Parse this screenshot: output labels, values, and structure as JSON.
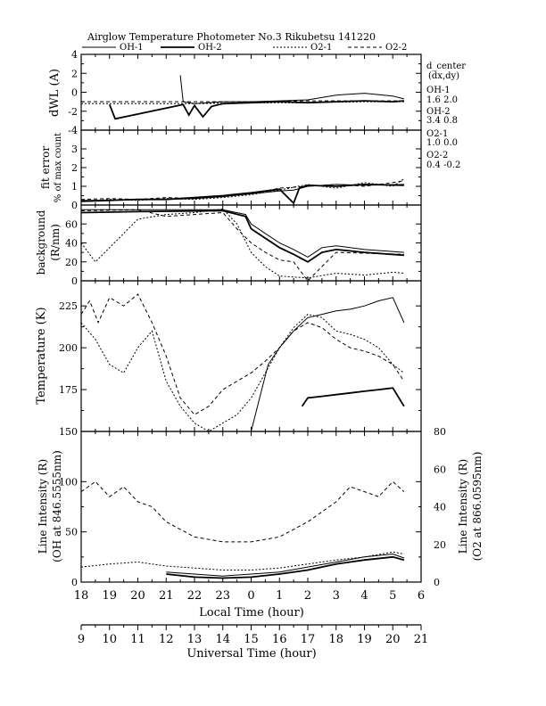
{
  "title": "Airglow Temperature Photometer No.3  Rikubetsu    141220",
  "legend": [
    {
      "label": "OH-1",
      "dash": "",
      "width": 1.0
    },
    {
      "label": "OH-2",
      "dash": "",
      "width": 1.8
    },
    {
      "label": "O2-1",
      "dash": "2,2",
      "width": 1.0
    },
    {
      "label": "O2-2",
      "dash": "4,3",
      "width": 1.0
    }
  ],
  "side_info": {
    "header1": "d_center",
    "header2": "(dx,dy)",
    "entries": [
      {
        "name": "OH-1",
        "value": "1.6   2.0"
      },
      {
        "name": "OH-2",
        "value": "3.4   0.8"
      },
      {
        "name": "O2-1",
        "value": "1.0   0.0"
      },
      {
        "name": "O2-2",
        "value": "0.4   -0.2"
      }
    ]
  },
  "panels": {
    "dwl": {
      "ylabel": "dWL (A)",
      "ticks": [
        "4",
        "2",
        "0",
        "-2",
        "-4"
      ]
    },
    "fit": {
      "ylabel1": "fit error",
      "ylabel2": "% of max count",
      "ticks": [
        "3",
        "2",
        "1",
        "0"
      ]
    },
    "background": {
      "ylabel1": "background",
      "ylabel2": "(R/nm)",
      "ticks": [
        "60",
        "40",
        "20",
        "0"
      ]
    },
    "temperature": {
      "ylabel": "Temperature (K)",
      "ticks": [
        "225",
        "200",
        "175",
        "150"
      ]
    },
    "intensity": {
      "ylabel1": "Line Intensity (R)",
      "ylabel2": "(OH at 846.5555nm)",
      "ylabel_right1": "Line Intensity (R)",
      "ylabel_right2": "(O2 at 866.0595nm)",
      "left_ticks": [
        "100",
        "50",
        "0"
      ],
      "right_ticks": [
        "80",
        "60",
        "40",
        "20",
        "0"
      ]
    }
  },
  "x_local": {
    "label": "Local Time (hour)",
    "ticks": [
      "18",
      "19",
      "20",
      "21",
      "22",
      "23",
      "0",
      "1",
      "2",
      "3",
      "4",
      "5",
      "6"
    ]
  },
  "x_ut": {
    "label": "Universal Time (hour)",
    "ticks": [
      "9",
      "10",
      "11",
      "12",
      "13",
      "14",
      "15",
      "16",
      "17",
      "18",
      "19",
      "20",
      "21"
    ]
  },
  "chart_data": {
    "type": "line",
    "title": "Airglow Temperature Photometer No.3  Rikubetsu    141220",
    "xlabel": "Local Time (hour)",
    "x_unit": "local hour after 18:00",
    "xlim": [
      18,
      30
    ],
    "series_names": [
      "OH-1",
      "OH-2",
      "O2-1",
      "O2-2"
    ],
    "panels": [
      {
        "id": "dwl",
        "ylabel": "dWL (A)",
        "ylim": [
          -4,
          4
        ],
        "series": [
          {
            "name": "OH-1",
            "x": [
              21.5,
              21.6,
              21.8,
              22.0,
              22.5,
              23.0,
              24.0,
              25.0,
              26.0,
              27.0,
              28.0,
              29.0,
              29.4
            ],
            "y": [
              1.8,
              -1.0,
              -1.1,
              -1.2,
              -1.1,
              -1.0,
              -1.0,
              -0.9,
              -0.8,
              -0.3,
              -0.1,
              -0.4,
              -0.7
            ]
          },
          {
            "name": "OH-2",
            "x": [
              19.0,
              19.2,
              21.6,
              21.8,
              22.0,
              22.3,
              22.6,
              23.0,
              24.0,
              25.0,
              26.0,
              27.0,
              28.0,
              29.0,
              29.4
            ],
            "y": [
              -1.3,
              -2.8,
              -1.3,
              -2.4,
              -1.4,
              -2.6,
              -1.5,
              -1.2,
              -1.1,
              -1.0,
              -1.1,
              -1.0,
              -0.9,
              -1.0,
              -0.9
            ]
          },
          {
            "name": "O2-1",
            "x": [
              18.0,
              20.0,
              22.0,
              24.0,
              26.0,
              28.0,
              29.4
            ],
            "y": [
              -1.2,
              -1.2,
              -1.2,
              -1.1,
              -1.1,
              -1.0,
              -1.0
            ]
          },
          {
            "name": "O2-2",
            "x": [
              18.0,
              20.0,
              22.0,
              24.0,
              26.0,
              28.0,
              29.4
            ],
            "y": [
              -1.0,
              -1.0,
              -1.0,
              -1.0,
              -0.9,
              -0.9,
              -0.9
            ]
          }
        ]
      },
      {
        "id": "fit",
        "ylabel": "fit error % of max count",
        "ylim": [
          0,
          4
        ],
        "series": [
          {
            "name": "OH-1",
            "x": [
              18.0,
              19.0,
              20.0,
              21.0,
              22.0,
              23.0,
              24.0,
              25.0,
              25.5,
              26.0,
              27.0,
              28.0,
              29.4
            ],
            "y": [
              0.25,
              0.25,
              0.3,
              0.3,
              0.35,
              0.45,
              0.6,
              0.75,
              0.8,
              1.0,
              1.1,
              1.05,
              1.1
            ]
          },
          {
            "name": "OH-2",
            "x": [
              18.0,
              19.0,
              20.0,
              21.0,
              22.0,
              23.0,
              24.0,
              25.0,
              25.5,
              25.7,
              26.0,
              27.0,
              28.0,
              29.4
            ],
            "y": [
              0.2,
              0.25,
              0.3,
              0.3,
              0.4,
              0.5,
              0.65,
              0.85,
              0.1,
              0.9,
              1.05,
              1.0,
              1.1,
              1.05
            ]
          },
          {
            "name": "O2-1",
            "x": [
              18.0,
              19.0,
              20.0,
              21.0,
              22.0,
              23.0,
              24.0,
              25.0,
              26.0,
              27.0,
              28.0,
              29.0,
              29.4
            ],
            "y": [
              0.2,
              0.3,
              0.25,
              0.35,
              0.3,
              0.4,
              0.55,
              0.8,
              1.1,
              0.9,
              1.2,
              1.0,
              1.4
            ]
          },
          {
            "name": "O2-2",
            "x": [
              18.0,
              19.0,
              20.0,
              21.0,
              22.0,
              23.0,
              24.0,
              25.0,
              26.0,
              27.0,
              28.0,
              29.0,
              29.4
            ],
            "y": [
              0.3,
              0.35,
              0.3,
              0.4,
              0.35,
              0.5,
              0.6,
              0.9,
              1.0,
              1.1,
              1.0,
              1.2,
              1.3
            ]
          }
        ]
      },
      {
        "id": "background",
        "ylabel": "background (R/nm)",
        "ylim": [
          0,
          80
        ],
        "series": [
          {
            "name": "OH-1",
            "x": [
              18.0,
              20.0,
              23.0,
              23.8,
              24.0,
              24.5,
              25.0,
              25.5,
              26.0,
              26.5,
              27.0,
              28.0,
              29.4
            ],
            "y": [
              75,
              75,
              75,
              70,
              60,
              50,
              40,
              33,
              25,
              35,
              37,
              33,
              30
            ]
          },
          {
            "name": "OH-2",
            "x": [
              18.0,
              20.0,
              23.0,
              23.8,
              24.0,
              24.5,
              25.0,
              25.5,
              26.0,
              26.5,
              27.0,
              28.0,
              29.4
            ],
            "y": [
              72,
              73,
              74,
              68,
              55,
              45,
              35,
              28,
              20,
              30,
              33,
              30,
              27
            ]
          },
          {
            "name": "O2-1",
            "x": [
              18.0,
              18.5,
              20.0,
              21.0,
              22.0,
              23.0,
              23.5,
              24.0,
              24.5,
              25.0,
              26.0,
              27.0,
              28.0,
              29.0,
              29.4
            ],
            "y": [
              40,
              20,
              65,
              70,
              72,
              76,
              60,
              30,
              15,
              5,
              3,
              8,
              6,
              9,
              8
            ]
          },
          {
            "name": "O2-2",
            "x": [
              18.0,
              20.0,
              21.0,
              22.0,
              23.0,
              23.5,
              24.0,
              24.5,
              25.0,
              25.5,
              26.0,
              27.0,
              29.4
            ],
            "y": [
              74,
              75,
              68,
              70,
              72,
              55,
              40,
              30,
              22,
              20,
              0,
              30,
              28
            ]
          }
        ]
      },
      {
        "id": "temperature",
        "ylabel": "Temperature (K)",
        "ylim": [
          150,
          240
        ],
        "series": [
          {
            "name": "OH-1",
            "x": [
              24.0,
              24.3,
              24.6,
              25.0,
              25.5,
              26.0,
              26.5,
              27.0,
              27.5,
              28.0,
              28.5,
              29.0,
              29.4
            ],
            "y": [
              150,
              170,
              190,
              200,
              210,
              218,
              220,
              222,
              223,
              225,
              228,
              230,
              215
            ]
          },
          {
            "name": "OH-2",
            "x": [
              25.8,
              26.0,
              26.5,
              27.0,
              27.5,
              28.0,
              28.5,
              29.0,
              29.4
            ],
            "y": [
              165,
              170,
              171,
              172,
              173,
              174,
              175,
              176,
              165
            ]
          },
          {
            "name": "O2-1",
            "x": [
              18.0,
              18.5,
              19.0,
              19.5,
              20.0,
              20.5,
              21.0,
              21.5,
              22.0,
              22.5,
              23.0,
              23.5,
              24.0,
              24.5,
              25.0,
              25.5,
              26.0,
              26.5,
              27.0,
              27.5,
              28.0,
              28.5,
              29.0,
              29.4
            ],
            "y": [
              215,
              205,
              190,
              185,
              200,
              210,
              180,
              165,
              155,
              150,
              155,
              160,
              170,
              185,
              200,
              212,
              220,
              218,
              210,
              208,
              205,
              200,
              190,
              185
            ]
          },
          {
            "name": "O2-2",
            "x": [
              18.0,
              18.3,
              18.6,
              19.0,
              19.5,
              20.0,
              20.5,
              21.0,
              21.5,
              22.0,
              22.5,
              23.0,
              23.5,
              24.0,
              24.5,
              25.0,
              25.5,
              26.0,
              26.5,
              27.0,
              27.5,
              28.0,
              28.5,
              29.0,
              29.4
            ],
            "y": [
              220,
              228,
              215,
              230,
              225,
              232,
              215,
              195,
              170,
              160,
              165,
              175,
              180,
              185,
              192,
              200,
              210,
              215,
              212,
              205,
              200,
              198,
              195,
              190,
              180
            ]
          }
        ]
      },
      {
        "id": "intensity",
        "ylabel": "Line Intensity (R) (OH at 846.5555nm)",
        "ylim": [
          0,
          150
        ],
        "series": [
          {
            "name": "OH-1",
            "x": [
              21.0,
              22.0,
              23.0,
              24.0,
              25.0,
              26.0,
              27.0,
              28.0,
              29.0,
              29.4
            ],
            "y": [
              10,
              8,
              6,
              8,
              10,
              15,
              20,
              25,
              28,
              24
            ]
          },
          {
            "name": "OH-2",
            "x": [
              21.0,
              22.0,
              23.0,
              24.0,
              25.0,
              26.0,
              27.0,
              28.0,
              29.0,
              29.4
            ],
            "y": [
              8,
              5,
              4,
              5,
              8,
              12,
              18,
              22,
              25,
              22
            ]
          },
          {
            "name": "O2-1",
            "x": [
              18.0,
              19.0,
              20.0,
              21.0,
              22.0,
              23.0,
              24.0,
              25.0,
              26.0,
              27.0,
              28.0,
              29.0,
              29.4
            ],
            "y": [
              15,
              18,
              20,
              16,
              14,
              12,
              12,
              14,
              18,
              22,
              25,
              30,
              28
            ]
          },
          {
            "name": "O2-2",
            "x": [
              18.0,
              18.5,
              19.0,
              19.5,
              20.0,
              20.5,
              21.0,
              22.0,
              23.0,
              24.0,
              25.0,
              26.0,
              27.0,
              27.5,
              28.0,
              28.5,
              29.0,
              29.4
            ],
            "y": [
              90,
              100,
              85,
              95,
              80,
              75,
              60,
              45,
              40,
              40,
              45,
              60,
              80,
              95,
              90,
              85,
              100,
              90
            ]
          }
        ]
      }
    ]
  }
}
